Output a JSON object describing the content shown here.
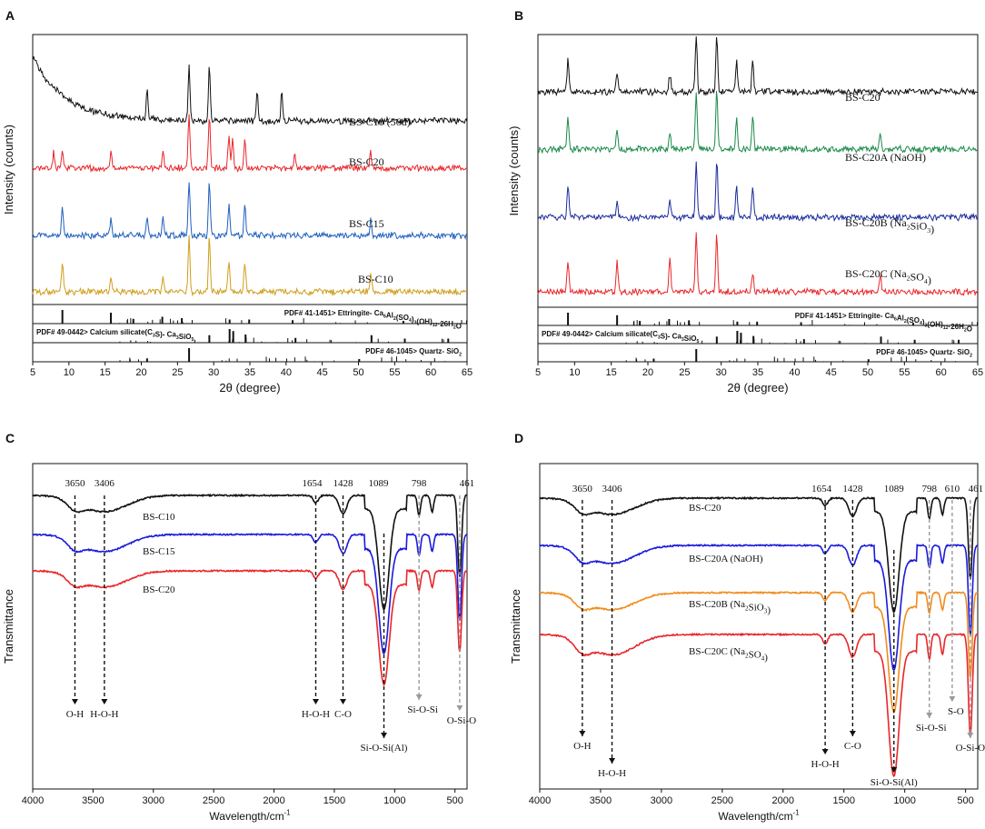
{
  "chart_data": [
    {
      "panel": "A",
      "type": "line",
      "xlabel": "2θ (degree)",
      "ylabel": "Intensity (counts)",
      "xlim": [
        5,
        65
      ],
      "xticks": [
        "5",
        "10",
        "15",
        "20",
        "25",
        "30",
        "35",
        "40",
        "45",
        "50",
        "55",
        "60",
        "65"
      ],
      "series": [
        {
          "name": "BS-C10 (56d)",
          "color": "#111111",
          "peaks": [
            29.4,
            26.6,
            20.8,
            39.4,
            36.0
          ]
        },
        {
          "name": "BS-C20",
          "color": "#e8262a",
          "peaks": [
            26.6,
            29.4,
            32.1,
            32.6,
            34.3,
            9.1,
            15.8,
            23.0,
            41.2,
            51.7,
            7.9
          ]
        },
        {
          "name": "BS-C15",
          "color": "#1f5fbf",
          "peaks": [
            26.6,
            29.4,
            32.1,
            34.3,
            9.1,
            15.8,
            23.0,
            20.8,
            51.7
          ]
        },
        {
          "name": "BS-C10",
          "color": "#cf9e1c",
          "peaks": [
            26.6,
            29.4,
            32.1,
            34.3,
            9.1,
            15.8,
            23.0,
            51.7
          ]
        }
      ],
      "references": [
        {
          "label_pre": "PDF# 41-1451> Ettringite- Ca",
          "sub1": "6",
          "mid1": "Al",
          "sub2": "2",
          "mid2": "(SO",
          "sub3": "4",
          "mid3": ")",
          "sub4": "3",
          "mid4": "(OH)",
          "sub5": "12",
          "tail": "·26H",
          "sub6": "2",
          "end": "O",
          "sticks": [
            [
              9.1,
              1.0
            ],
            [
              15.8,
              0.8
            ],
            [
              18.9,
              0.35
            ],
            [
              22.9,
              0.5
            ],
            [
              25.6,
              0.4
            ],
            [
              32.2,
              0.3
            ],
            [
              34.9,
              0.3
            ],
            [
              40.9,
              0.25
            ],
            [
              56.2,
              0.2
            ]
          ]
        },
        {
          "label_pre": "PDF# 49-0442> Calcium silicate(C",
          "sub1": "3",
          "mid1": "S)- Ca",
          "sub2": "3",
          "mid2": "SiO",
          "sub3": "5",
          "sticks": [
            [
              29.4,
              0.55
            ],
            [
              32.2,
              1.0
            ],
            [
              32.7,
              0.85
            ],
            [
              34.4,
              0.6
            ],
            [
              41.3,
              0.35
            ],
            [
              51.8,
              0.55
            ],
            [
              56.4,
              0.3
            ],
            [
              62.4,
              0.3
            ]
          ]
        },
        {
          "label_pre": "PDF# 46-1045> Quartz- SiO",
          "sub1": "2",
          "sticks": [
            [
              26.6,
              1.0
            ],
            [
              20.8,
              0.25
            ],
            [
              50.1,
              0.2
            ]
          ]
        }
      ]
    },
    {
      "panel": "B",
      "type": "line",
      "xlabel": "2θ (degree)",
      "ylabel": "Intensity (counts)",
      "xlim": [
        5,
        65
      ],
      "xticks": [
        "5",
        "10",
        "15",
        "20",
        "25",
        "30",
        "35",
        "40",
        "45",
        "50",
        "55",
        "60",
        "65"
      ],
      "series": [
        {
          "name": "BS-C20",
          "color": "#111111",
          "peaks": [
            26.6,
            29.4,
            32.1,
            34.3,
            9.1,
            15.8,
            23.0
          ]
        },
        {
          "name": "BS-C20A (NaOH)",
          "color": "#1a8a4a",
          "peaks": [
            26.6,
            29.4,
            32.1,
            34.3,
            9.1,
            15.8,
            23.0,
            51.7
          ]
        },
        {
          "name": "BS-C20B (Na2SiO3)",
          "label_pre": "BS-C20B (Na",
          "sub1": "2",
          "mid1": "SiO",
          "sub2": "3",
          "end": ")",
          "color": "#1b2a9c",
          "peaks": [
            26.6,
            29.4,
            32.1,
            34.3,
            9.1,
            15.8,
            23.0
          ]
        },
        {
          "name": "BS-C20C (Na2SO4)",
          "label_pre": "BS-C20C (Na",
          "sub1": "2",
          "mid1": "SO",
          "sub2": "4",
          "end": ")",
          "color": "#e8262a",
          "peaks": [
            26.6,
            29.4,
            9.1,
            15.8,
            23.0,
            34.3,
            51.7
          ]
        }
      ]
    },
    {
      "panel": "C",
      "type": "line",
      "xlabel": "Wavelength/cm",
      "xlabel_sup": "-1",
      "ylabel": "Transmittance",
      "xlim": [
        4000,
        400
      ],
      "xticks": [
        "4000",
        "3500",
        "3000",
        "2500",
        "2000",
        "1500",
        "1000",
        "500"
      ],
      "series": [
        {
          "name": "BS-C10",
          "color": "#111111"
        },
        {
          "name": "BS-C15",
          "color": "#1a1adc"
        },
        {
          "name": "BS-C20",
          "color": "#e8262a"
        }
      ],
      "band_positions": [
        "3650",
        "3406",
        "1654",
        "1428",
        "1089",
        "798",
        "461"
      ],
      "assignments": [
        "O-H",
        "H-O-H",
        "H-O-H",
        "C-O",
        "Si-O-Si(Al)",
        "Si-O-Si",
        "O-Si-O"
      ]
    },
    {
      "panel": "D",
      "type": "line",
      "xlabel": "Wavelength/cm",
      "xlabel_sup": "-1",
      "ylabel": "Transmittance",
      "xlim": [
        4000,
        400
      ],
      "xticks": [
        "4000",
        "3500",
        "3000",
        "2500",
        "2000",
        "1500",
        "1000",
        "500"
      ],
      "series": [
        {
          "name": "BS-C20",
          "color": "#111111"
        },
        {
          "name": "BS-C20A (NaOH)",
          "color": "#1a1adc"
        },
        {
          "name": "BS-C20B (Na2SiO3)",
          "label_pre": "BS-C20B (Na",
          "sub1": "2",
          "mid1": "SiO",
          "sub2": "3",
          "end": ")",
          "color": "#f08c1c"
        },
        {
          "name": "BS-C20C (Na2SO4)",
          "label_pre": "BS-C20C (Na",
          "sub1": "2",
          "mid1": "SO",
          "sub2": "4",
          "end": ")",
          "color": "#e8262a"
        }
      ],
      "band_positions": [
        "3650",
        "3406",
        "1654",
        "1428",
        "1089",
        "798",
        "610",
        "461"
      ],
      "assignments": [
        "O-H",
        "H-O-H",
        "H-O-H",
        "C-O",
        "Si-O-Si(Al)",
        "Si-O-Si",
        "S-O",
        "O-Si-O"
      ]
    }
  ]
}
